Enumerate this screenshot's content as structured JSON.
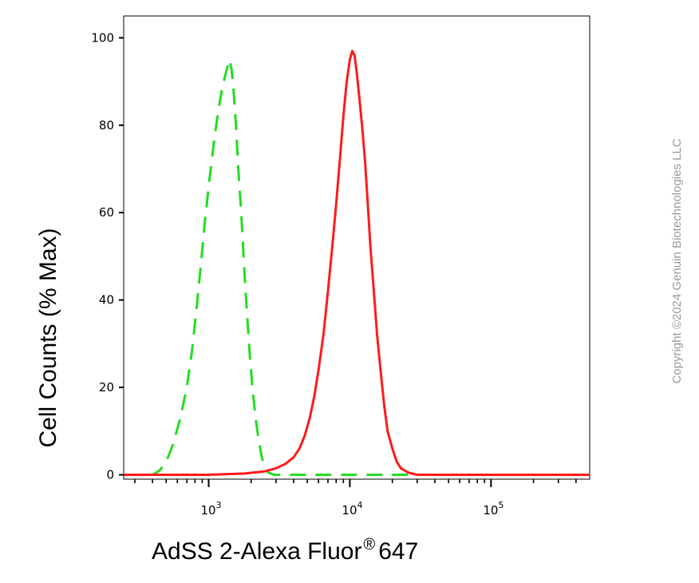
{
  "chart_data": {
    "type": "line",
    "title": "",
    "ylabel": "Cell Counts (% Max)",
    "xlabel": {
      "main": "AdSS 2-Alexa Fluor",
      "superscript": "®",
      "suffix": "647"
    },
    "x_scale": "log",
    "xlim": [
      250,
      500000
    ],
    "ylim": [
      -1,
      105
    ],
    "y_ticks": [
      {
        "value": 0,
        "label": "0"
      },
      {
        "value": 20,
        "label": "20"
      },
      {
        "value": 40,
        "label": "40"
      },
      {
        "value": 60,
        "label": "60"
      },
      {
        "value": 80,
        "label": "80"
      },
      {
        "value": 100,
        "label": "100"
      }
    ],
    "x_major_ticks": [
      {
        "value": 1000,
        "base": "10",
        "exp": "3"
      },
      {
        "value": 10000,
        "base": "10",
        "exp": "4"
      },
      {
        "value": 100000,
        "base": "10",
        "exp": "5"
      }
    ],
    "x_minor_ticks": [
      300,
      400,
      500,
      600,
      700,
      800,
      900,
      2000,
      3000,
      4000,
      5000,
      6000,
      7000,
      8000,
      9000,
      20000,
      30000,
      40000,
      50000,
      60000,
      70000,
      80000,
      90000,
      200000,
      300000,
      400000
    ],
    "grid": false,
    "legend": "none",
    "series": [
      {
        "color": "#22dd22",
        "style": "dashed",
        "points": [
          [
            250,
            0
          ],
          [
            400,
            0
          ],
          [
            450,
            1
          ],
          [
            500,
            3
          ],
          [
            560,
            7
          ],
          [
            630,
            13
          ],
          [
            700,
            20
          ],
          [
            760,
            28
          ],
          [
            820,
            38
          ],
          [
            880,
            48
          ],
          [
            940,
            58
          ],
          [
            1000,
            66
          ],
          [
            1060,
            73
          ],
          [
            1120,
            79
          ],
          [
            1180,
            84
          ],
          [
            1240,
            88
          ],
          [
            1300,
            91
          ],
          [
            1350,
            93
          ],
          [
            1400,
            95
          ],
          [
            1450,
            93
          ],
          [
            1500,
            88
          ],
          [
            1560,
            80
          ],
          [
            1620,
            70
          ],
          [
            1700,
            60
          ],
          [
            1780,
            48
          ],
          [
            1860,
            38
          ],
          [
            1950,
            28
          ],
          [
            2040,
            20
          ],
          [
            2150,
            13
          ],
          [
            2260,
            8
          ],
          [
            2380,
            4
          ],
          [
            2500,
            1.5
          ],
          [
            2650,
            0.5
          ],
          [
            2900,
            0
          ],
          [
            10000,
            0
          ],
          [
            500000,
            0
          ]
        ]
      },
      {
        "color": "#ff1a1a",
        "style": "solid",
        "points": [
          [
            250,
            0
          ],
          [
            1000,
            0
          ],
          [
            1800,
            0.3
          ],
          [
            2500,
            0.8
          ],
          [
            3000,
            1.5
          ],
          [
            3500,
            2.5
          ],
          [
            4000,
            4
          ],
          [
            4400,
            6
          ],
          [
            4800,
            9
          ],
          [
            5200,
            13
          ],
          [
            5600,
            18
          ],
          [
            6000,
            24
          ],
          [
            6500,
            32
          ],
          [
            7000,
            42
          ],
          [
            7500,
            52
          ],
          [
            8000,
            62
          ],
          [
            8500,
            72
          ],
          [
            9000,
            82
          ],
          [
            9500,
            90
          ],
          [
            10000,
            95
          ],
          [
            10400,
            97
          ],
          [
            10800,
            96
          ],
          [
            11200,
            92
          ],
          [
            11700,
            86
          ],
          [
            12200,
            80
          ],
          [
            12800,
            72
          ],
          [
            13400,
            62
          ],
          [
            14000,
            52
          ],
          [
            14800,
            42
          ],
          [
            15600,
            32
          ],
          [
            16500,
            24
          ],
          [
            17500,
            16
          ],
          [
            18500,
            10
          ],
          [
            20000,
            6
          ],
          [
            21500,
            3
          ],
          [
            23000,
            1.5
          ],
          [
            26000,
            0.5
          ],
          [
            30000,
            0
          ],
          [
            500000,
            0
          ]
        ]
      }
    ]
  },
  "copyright": "Copyright ©2024 Genuin Biotechnologies LLC"
}
